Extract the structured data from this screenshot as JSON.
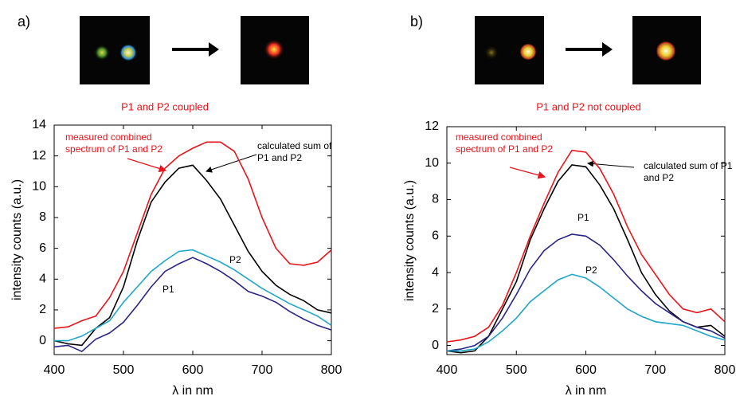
{
  "chart_data": [
    {
      "type": "line",
      "panel_label": "a)",
      "image_caption": "P1 and P2 coupled",
      "xlabel": "λ in nm",
      "ylabel": "intensity counts (a.u.)",
      "xlim": [
        400,
        800
      ],
      "xticks": [
        400,
        500,
        600,
        700,
        800
      ],
      "ylim": [
        -0.9,
        14
      ],
      "yticks": [
        0,
        2,
        4,
        6,
        8,
        10,
        12,
        14
      ],
      "x": [
        400,
        420,
        440,
        460,
        480,
        500,
        520,
        540,
        560,
        580,
        600,
        620,
        640,
        660,
        680,
        700,
        720,
        740,
        760,
        780,
        800
      ],
      "series": [
        {
          "name": "measured combined spectrum of P1 and P2",
          "color": "#e8141b",
          "values": [
            0.8,
            0.9,
            1.3,
            1.6,
            2.8,
            4.5,
            7,
            9.5,
            11.2,
            12.0,
            12.5,
            12.9,
            12.9,
            12.3,
            10.5,
            8.0,
            6.0,
            5.0,
            4.9,
            5.1,
            5.9
          ]
        },
        {
          "name": "calculated sum of P1 and P2",
          "color": "#000000",
          "values": [
            0.0,
            -0.2,
            -0.3,
            0.8,
            1.5,
            3.5,
            6.5,
            9,
            10.3,
            11.2,
            11.4,
            10.4,
            9.2,
            7.5,
            5.8,
            4.5,
            3.6,
            3.0,
            2.6,
            2.0,
            1.8
          ]
        },
        {
          "name": "P2",
          "color": "#1ea7c9",
          "values": [
            0,
            0,
            0.3,
            0.8,
            1.3,
            2.5,
            3.5,
            4.5,
            5.2,
            5.8,
            5.9,
            5.5,
            5.1,
            4.6,
            4.0,
            3.4,
            2.9,
            2.4,
            2.0,
            1.6,
            1.0
          ]
        },
        {
          "name": "P1",
          "color": "#2a2585",
          "values": [
            -0.4,
            -0.3,
            -0.7,
            0.1,
            0.5,
            1.2,
            2.3,
            3.5,
            4.5,
            5.0,
            5.4,
            5.0,
            4.5,
            3.9,
            3.2,
            2.9,
            2.5,
            1.9,
            1.4,
            1.0,
            0.7
          ]
        }
      ]
    },
    {
      "type": "line",
      "panel_label": "b)",
      "image_caption": "P1 and P2 not coupled",
      "xlabel": "λ in nm",
      "ylabel": "intensity counts (a.u.)",
      "xlim": [
        400,
        800
      ],
      "xticks": [
        400,
        500,
        600,
        700,
        800
      ],
      "ylim": [
        -0.5,
        12
      ],
      "yticks": [
        0,
        2,
        4,
        6,
        8,
        10,
        12
      ],
      "x": [
        400,
        420,
        440,
        460,
        480,
        500,
        520,
        540,
        560,
        580,
        600,
        620,
        640,
        660,
        680,
        700,
        720,
        740,
        760,
        780,
        800
      ],
      "series": [
        {
          "name": "measured combined spectrum of P1 and P2",
          "color": "#e8141b",
          "values": [
            0.2,
            0.3,
            0.5,
            1.0,
            2.2,
            4.0,
            6.0,
            7.8,
            9.5,
            10.7,
            10.6,
            9.7,
            8.3,
            6.5,
            5.0,
            3.9,
            2.8,
            2.0,
            1.8,
            2.0,
            1.3
          ]
        },
        {
          "name": "calculated sum of P1 and P2",
          "color": "#000000",
          "values": [
            -0.3,
            -0.4,
            -0.3,
            0.5,
            2.0,
            3.5,
            5.8,
            7.5,
            9.0,
            9.9,
            9.8,
            8.8,
            7.5,
            5.8,
            4.0,
            2.8,
            1.9,
            1.3,
            1.0,
            1.1,
            0.5
          ]
        },
        {
          "name": "P1",
          "color": "#2a2585",
          "values": [
            -0.3,
            -0.2,
            0,
            0.5,
            1.5,
            2.8,
            4.2,
            5.2,
            5.8,
            6.1,
            6.0,
            5.5,
            4.7,
            3.8,
            3.0,
            2.3,
            1.8,
            1.3,
            1.0,
            0.8,
            0.4
          ]
        },
        {
          "name": "P2",
          "color": "#1ea7c9",
          "values": [
            -0.3,
            -0.3,
            -0.2,
            0.2,
            0.8,
            1.5,
            2.4,
            3.0,
            3.6,
            3.9,
            3.7,
            3.2,
            2.6,
            2.0,
            1.6,
            1.3,
            1.2,
            1.1,
            0.8,
            0.5,
            0.3
          ]
        }
      ]
    }
  ]
}
